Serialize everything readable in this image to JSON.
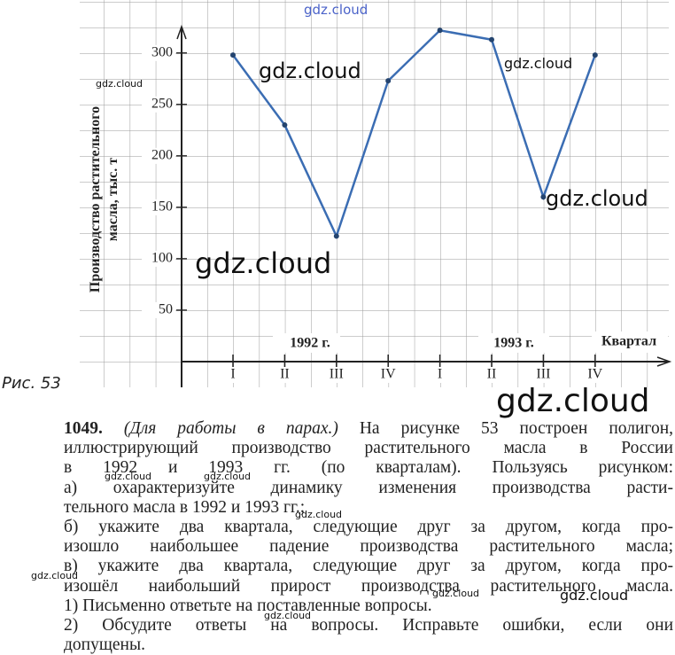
{
  "chart_data": {
    "type": "line",
    "ylabel": "Производство растительного масла, тыс. т",
    "xlabel": "Квартал",
    "categories": [
      "I",
      "II",
      "III",
      "IV",
      "I",
      "II",
      "III",
      "IV"
    ],
    "groups": [
      "1992 г.",
      "1993 г."
    ],
    "series": [
      {
        "name": "Производство",
        "color": "#3b6db3",
        "values": [
          298,
          230,
          122,
          273,
          322,
          313,
          160,
          298
        ]
      }
    ],
    "ylim": [
      0,
      330
    ],
    "yticks": [
      50,
      100,
      150,
      200,
      250,
      300
    ],
    "grid": true
  },
  "caption": "Рис. 53",
  "exercise": {
    "number": "1049.",
    "note": "(Для работы в парах.)",
    "lines": [
      "На рисунке 53 построен полигон,",
      "иллюстрирующий производство растительного масла в России",
      "в 1992 и 1993 гг. (по кварталам). Пользуясь рисунком:",
      "а) охарактеризуйте динамику изменения производства расти-",
      "тельного масла в 1992 и 1993 гг.;",
      "б) укажите два квартала, следующие друг за другом, когда про-",
      "изошло наибольшее падение производства растительного масла;",
      "в) укажите два квартала, следующие друг за другом, когда про-",
      "изошёл наибольший прирост производства растительного масла.",
      "1) Письменно ответьте на поставленные вопросы.",
      "2) Обсудите ответы на вопросы. Исправьте ошибки, если они",
      "допущены."
    ]
  },
  "watermarks": [
    "gdz.cloud",
    "gdz.cloud",
    "gdz.cloud",
    "gdz.cloud",
    "gdz.cloud",
    "gdz.cloud",
    "gdz.cloud",
    "gdz.cloud",
    "gdz.cloud",
    "gdz.cloud",
    "gdz.cloud",
    "gdz.cloud",
    "gdz.cloud",
    "gdz.cloud"
  ]
}
